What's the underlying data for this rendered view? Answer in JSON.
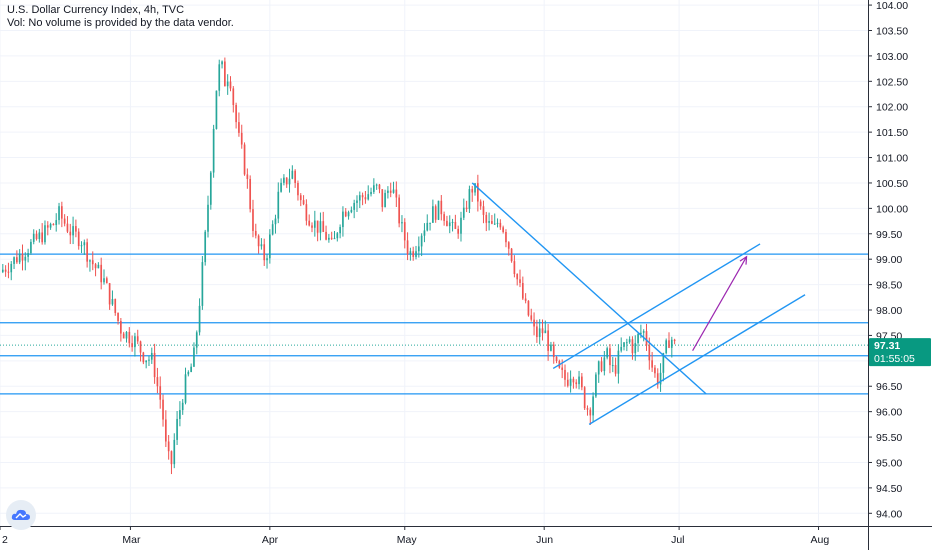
{
  "header": {
    "title": "U.S. Dollar Currency Index, 4h, TVC",
    "volume_note": "Vol: No volume is provided by the data vendor."
  },
  "price_box": {
    "price": "97.31",
    "countdown": "01:55:05",
    "color": "#089981"
  },
  "logo": {
    "icon": "cloud-icon"
  },
  "colors": {
    "up": "#26a69a",
    "down": "#ef5350",
    "trendline": "#2196f3",
    "projection": "#9c27b0",
    "grid": "#f0f3fa"
  },
  "chart_data": {
    "type": "candlestick",
    "title": "U.S. Dollar Currency Index, 4h, TVC",
    "ylim": [
      93.75,
      104.1
    ],
    "y_ticks": [
      "94.00",
      "94.50",
      "95.00",
      "95.50",
      "96.00",
      "96.50",
      "97.00",
      "97.50",
      "98.00",
      "98.50",
      "99.00",
      "99.50",
      "100.00",
      "100.50",
      "101.00",
      "101.50",
      "102.00",
      "102.50",
      "103.00",
      "103.50",
      "104.00"
    ],
    "x_range": [
      "2020-02-01",
      "2020-08-12"
    ],
    "x_ticks": [
      {
        "label": "2",
        "date": "2020-02-01"
      },
      {
        "label": "Mar",
        "date": "2020-03-01"
      },
      {
        "label": "Apr",
        "date": "2020-04-01"
      },
      {
        "label": "May",
        "date": "2020-05-01"
      },
      {
        "label": "Jun",
        "date": "2020-06-01"
      },
      {
        "label": "Jul",
        "date": "2020-07-01"
      },
      {
        "label": "Aug",
        "date": "2020-08-01"
      }
    ],
    "price_path": [
      [
        "2020-02-01",
        98.75
      ],
      [
        "2020-02-05",
        99.05
      ],
      [
        "2020-02-10",
        99.45
      ],
      [
        "2020-02-13",
        99.7
      ],
      [
        "2020-02-14",
        99.9
      ],
      [
        "2020-02-17",
        99.5
      ],
      [
        "2020-02-19",
        99.4
      ],
      [
        "2020-02-21",
        99.0
      ],
      [
        "2020-02-24",
        98.6
      ],
      [
        "2020-02-26",
        98.1
      ],
      [
        "2020-02-28",
        97.6
      ],
      [
        "2020-03-02",
        97.4
      ],
      [
        "2020-03-04",
        97.1
      ],
      [
        "2020-03-06",
        97.0
      ],
      [
        "2020-03-07",
        96.5
      ],
      [
        "2020-03-08",
        96.1
      ],
      [
        "2020-03-09",
        95.2
      ],
      [
        "2020-03-10",
        94.9
      ],
      [
        "2020-03-11",
        95.6
      ],
      [
        "2020-03-13",
        96.5
      ],
      [
        "2020-03-15",
        97.0
      ],
      [
        "2020-03-16",
        97.8
      ],
      [
        "2020-03-17",
        98.8
      ],
      [
        "2020-03-18",
        99.8
      ],
      [
        "2020-03-19",
        101.0
      ],
      [
        "2020-03-20",
        102.3
      ],
      [
        "2020-03-21",
        102.9
      ],
      [
        "2020-03-22",
        102.5
      ],
      [
        "2020-03-23",
        102.7
      ],
      [
        "2020-03-24",
        102.0
      ],
      [
        "2020-03-25",
        101.4
      ],
      [
        "2020-03-26",
        101.0
      ],
      [
        "2020-03-27",
        100.5
      ],
      [
        "2020-03-28",
        99.8
      ],
      [
        "2020-03-29",
        99.3
      ],
      [
        "2020-03-31",
        99.0
      ],
      [
        "2020-04-01",
        99.4
      ],
      [
        "2020-04-02",
        99.8
      ],
      [
        "2020-04-03",
        100.3
      ],
      [
        "2020-04-05",
        100.6
      ],
      [
        "2020-04-06",
        100.7
      ],
      [
        "2020-04-07",
        100.4
      ],
      [
        "2020-04-08",
        100.1
      ],
      [
        "2020-04-10",
        99.8
      ],
      [
        "2020-04-12",
        99.6
      ],
      [
        "2020-04-14",
        99.4
      ],
      [
        "2020-04-15",
        99.2
      ],
      [
        "2020-04-16",
        99.6
      ],
      [
        "2020-04-17",
        99.9
      ],
      [
        "2020-04-19",
        100.1
      ],
      [
        "2020-04-21",
        100.2
      ],
      [
        "2020-04-23",
        100.3
      ],
      [
        "2020-04-25",
        100.4
      ],
      [
        "2020-04-26",
        100.1
      ],
      [
        "2020-04-27",
        100.3
      ],
      [
        "2020-04-28",
        100.5
      ],
      [
        "2020-04-29",
        100.1
      ],
      [
        "2020-04-30",
        99.7
      ],
      [
        "2020-05-01",
        99.4
      ],
      [
        "2020-05-02",
        99.1
      ],
      [
        "2020-05-03",
        99.2
      ],
      [
        "2020-05-05",
        99.6
      ],
      [
        "2020-05-07",
        99.9
      ],
      [
        "2020-05-09",
        100.0
      ],
      [
        "2020-05-11",
        99.7
      ],
      [
        "2020-05-12",
        99.5
      ],
      [
        "2020-05-14",
        99.8
      ],
      [
        "2020-05-15",
        100.2
      ],
      [
        "2020-05-16",
        100.4
      ],
      [
        "2020-05-17",
        100.3
      ],
      [
        "2020-05-18",
        99.9
      ],
      [
        "2020-05-19",
        99.7
      ],
      [
        "2020-05-21",
        99.6
      ],
      [
        "2020-05-22",
        99.8
      ],
      [
        "2020-05-23",
        99.6
      ],
      [
        "2020-05-24",
        99.3
      ],
      [
        "2020-05-25",
        99.0
      ],
      [
        "2020-05-26",
        98.6
      ],
      [
        "2020-05-27",
        98.3
      ],
      [
        "2020-05-28",
        98.0
      ],
      [
        "2020-05-29",
        97.8
      ],
      [
        "2020-05-30",
        97.5
      ],
      [
        "2020-06-01",
        97.6
      ],
      [
        "2020-06-02",
        97.3
      ],
      [
        "2020-06-03",
        97.0
      ],
      [
        "2020-06-04",
        96.8
      ],
      [
        "2020-06-05",
        96.7
      ],
      [
        "2020-06-06",
        96.6
      ],
      [
        "2020-06-07",
        96.8
      ],
      [
        "2020-06-08",
        96.7
      ],
      [
        "2020-06-09",
        96.5
      ],
      [
        "2020-06-10",
        96.2
      ],
      [
        "2020-06-11",
        96.0
      ],
      [
        "2020-06-12",
        96.4
      ],
      [
        "2020-06-13",
        96.8
      ],
      [
        "2020-06-14",
        97.0
      ],
      [
        "2020-06-15",
        97.1
      ],
      [
        "2020-06-16",
        96.8
      ],
      [
        "2020-06-17",
        96.9
      ],
      [
        "2020-06-18",
        97.2
      ],
      [
        "2020-06-19",
        97.3
      ],
      [
        "2020-06-20",
        97.4
      ],
      [
        "2020-06-21",
        97.2
      ],
      [
        "2020-06-22",
        97.5
      ],
      [
        "2020-06-23",
        97.6
      ],
      [
        "2020-06-24",
        97.3
      ],
      [
        "2020-06-25",
        96.9
      ],
      [
        "2020-06-26",
        96.6
      ],
      [
        "2020-06-27",
        96.8
      ],
      [
        "2020-06-28",
        97.2
      ],
      [
        "2020-06-29",
        97.5
      ],
      [
        "2020-06-30",
        97.3
      ]
    ],
    "candle_count": 240,
    "current_price": 97.31,
    "current_price_line": 97.31,
    "horizontal_lines": [
      99.1,
      97.75,
      97.1,
      96.35
    ],
    "trendlines": [
      {
        "from": [
          "2020-05-16",
          100.5
        ],
        "to": [
          "2020-07-07",
          96.35
        ]
      },
      {
        "from": [
          "2020-06-03",
          96.85
        ],
        "to": [
          "2020-07-19",
          99.3
        ]
      },
      {
        "from": [
          "2020-06-11",
          95.75
        ],
        "to": [
          "2020-07-29",
          98.3
        ]
      }
    ],
    "projection_arrow": {
      "from": [
        "2020-07-04",
        97.2
      ],
      "to": [
        "2020-07-16",
        99.05
      ]
    }
  }
}
